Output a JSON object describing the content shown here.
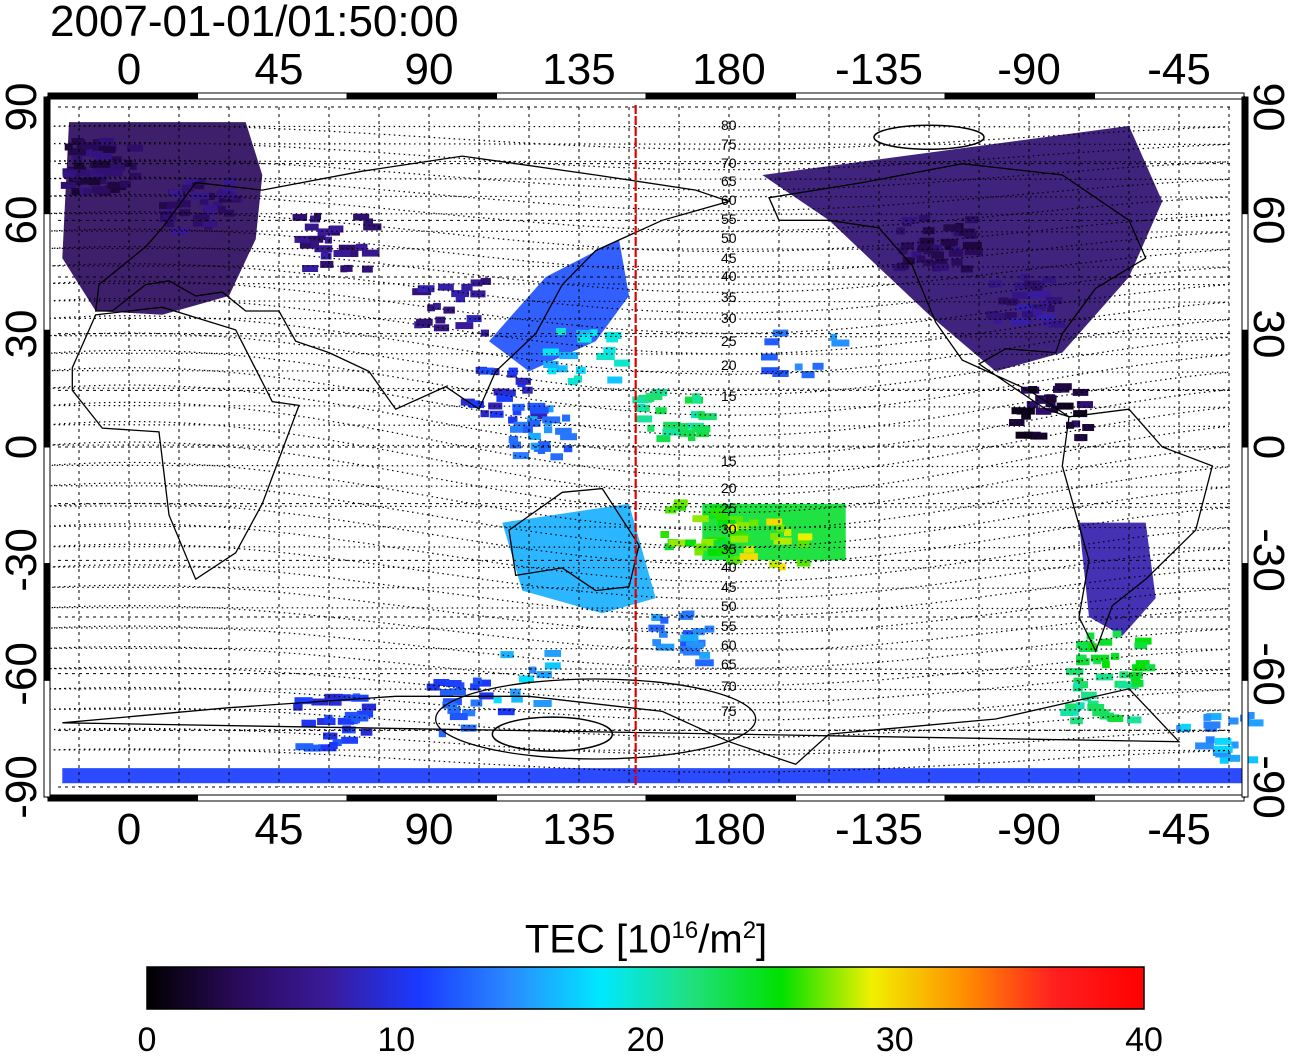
{
  "title": "2007-01-01/01:50:00",
  "axes": {
    "top_ticks": [
      "0",
      "45",
      "90",
      "135",
      "180",
      "-135",
      "-90",
      "-45"
    ],
    "bottom_ticks": [
      "0",
      "45",
      "90",
      "135",
      "180",
      "-135",
      "-90",
      "-45"
    ],
    "left_ticks": [
      "90",
      "60",
      "30",
      "0",
      "-30",
      "-60",
      "-90"
    ],
    "right_ticks": [
      "90",
      "60",
      "30",
      "0",
      "-30",
      "-60",
      "-90"
    ]
  },
  "magnetic_latitude_labels": [
    "80",
    "75",
    "70",
    "65",
    "60",
    "55",
    "50",
    "45",
    "40",
    "35",
    "30",
    "25",
    "20",
    "15",
    "15",
    "20",
    "25",
    "30",
    "35",
    "40",
    "45",
    "50",
    "55",
    "60",
    "65",
    "70",
    "75"
  ],
  "marker": {
    "label": "red dashed meridian",
    "color": "#e00000",
    "longitude": 152
  },
  "colorbar": {
    "label_main": "TEC  [10",
    "label_exp1": "16",
    "label_mid": "/m",
    "label_exp2": "2",
    "label_end": "]",
    "ticks": [
      "0",
      "10",
      "20",
      "30",
      "40"
    ],
    "range": [
      0,
      40
    ],
    "colors": [
      "#000000",
      "#2a0a5a",
      "#3a1a9a",
      "#1a3aff",
      "#2a8aff",
      "#00e8ff",
      "#20e080",
      "#00e000",
      "#f0f000",
      "#ff9000",
      "#ff2020",
      "#ff0000"
    ]
  },
  "tec_regions": [
    {
      "name": "europe",
      "value": 4
    },
    {
      "name": "east-asia",
      "value": 12
    },
    {
      "name": "north-america",
      "value": 5
    },
    {
      "name": "south-america",
      "value": 8
    },
    {
      "name": "oceania",
      "value": 16
    },
    {
      "name": "south-pacific",
      "value": 24
    },
    {
      "name": "antarctic-band",
      "value": 11
    }
  ]
}
